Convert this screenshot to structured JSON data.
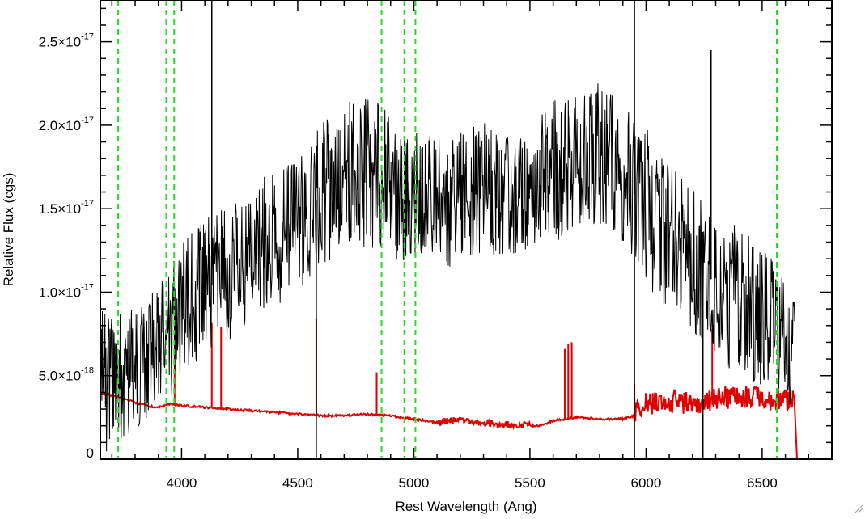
{
  "chart_data": {
    "type": "line",
    "title": "",
    "xlabel": "Rest Wavelength (Ang)",
    "ylabel": "Relative Flux (cgs)",
    "xlim": [
      3650,
      6800
    ],
    "ylim": [
      0,
      2.75e-17
    ],
    "x_ticks": [
      {
        "value": 4000,
        "label": "4000"
      },
      {
        "value": 4500,
        "label": "4500"
      },
      {
        "value": 5000,
        "label": "5000"
      },
      {
        "value": 5500,
        "label": "5500"
      },
      {
        "value": 6000,
        "label": "6000"
      },
      {
        "value": 6500,
        "label": "6500"
      }
    ],
    "y_ticks": [
      {
        "value": 0,
        "mantissa": "0",
        "exponent": ""
      },
      {
        "value": 5e-18,
        "mantissa": "5.0×10",
        "exponent": "-18"
      },
      {
        "value": 1e-17,
        "mantissa": "1.0×10",
        "exponent": "-17"
      },
      {
        "value": 1.5e-17,
        "mantissa": "1.5×10",
        "exponent": "-17"
      },
      {
        "value": 2e-17,
        "mantissa": "2.0×10",
        "exponent": "-17"
      },
      {
        "value": 2.5e-17,
        "mantissa": "2.5×10",
        "exponent": "-17"
      }
    ],
    "grid": false,
    "series": [
      {
        "role": "spectrum",
        "color": "#000000",
        "x": [
          3650,
          3700,
          3750,
          3800,
          3850,
          3900,
          3950,
          4000,
          4050,
          4100,
          4150,
          4200,
          4250,
          4300,
          4350,
          4400,
          4450,
          4500,
          4550,
          4600,
          4650,
          4700,
          4750,
          4800,
          4850,
          4900,
          4950,
          5000,
          5050,
          5100,
          5150,
          5200,
          5250,
          5300,
          5350,
          5400,
          5450,
          5500,
          5550,
          5600,
          5650,
          5700,
          5750,
          5800,
          5850,
          5900,
          5950,
          6000,
          6050,
          6100,
          6150,
          6200,
          6250,
          6300,
          6350,
          6400,
          6450,
          6500,
          6550,
          6600,
          6640
        ],
        "y": [
          4.5e-18,
          4.8e-18,
          5.1e-18,
          5.5e-18,
          6e-18,
          6.8e-18,
          7.5e-18,
          8.8e-18,
          9.6e-18,
          1.02e-17,
          1.06e-17,
          1.1e-17,
          1.15e-17,
          1.2e-17,
          1.27e-17,
          1.33e-17,
          1.38e-17,
          1.42e-17,
          1.5e-17,
          1.58e-17,
          1.62e-17,
          1.68e-17,
          1.72e-17,
          1.72e-17,
          1.7e-17,
          1.65e-17,
          1.6e-17,
          1.62e-17,
          1.65e-17,
          1.6e-17,
          1.55e-17,
          1.55e-17,
          1.6e-17,
          1.63e-17,
          1.6e-17,
          1.55e-17,
          1.58e-17,
          1.65e-17,
          1.7e-17,
          1.75e-17,
          1.72e-17,
          1.78e-17,
          1.82e-17,
          1.85e-17,
          1.8e-17,
          1.72e-17,
          1.6e-17,
          1.52e-17,
          1.42e-17,
          1.35e-17,
          1.28e-17,
          1.2e-17,
          1.12e-17,
          1.05e-17,
          1e-17,
          9.5e-18,
          9e-18,
          8.5e-18,
          8e-18,
          7e-18,
          6.5e-18
        ],
        "spikes": [
          {
            "x": 4130,
            "y": 2.75e-17
          },
          {
            "x": 4580,
            "y": 1e-19
          },
          {
            "x": 5950,
            "y": 2.75e-17
          },
          {
            "x": 5950,
            "y": 1e-19
          },
          {
            "x": 6280,
            "y": 2.45e-17
          },
          {
            "x": 6245,
            "y": 1e-19
          }
        ]
      },
      {
        "role": "error",
        "color": "#e00000",
        "x": [
          3650,
          3700,
          3750,
          3800,
          3850,
          3900,
          3950,
          4000,
          4100,
          4200,
          4300,
          4400,
          4500,
          4550,
          4600,
          4700,
          4800,
          4900,
          5000,
          5100,
          5200,
          5300,
          5400,
          5500,
          5550,
          5600,
          5700,
          5800,
          5900,
          5950,
          6000,
          6100,
          6200,
          6300,
          6400,
          6500,
          6600,
          6640,
          6650,
          6700,
          6800
        ],
        "y": [
          4e-18,
          3.8e-18,
          3.6e-18,
          3.4e-18,
          3.2e-18,
          3.1e-18,
          3.3e-18,
          3.2e-18,
          3.1e-18,
          3e-18,
          2.9e-18,
          2.8e-18,
          2.7e-18,
          2.7e-18,
          2.6e-18,
          2.6e-18,
          2.7e-18,
          2.6e-18,
          2.4e-18,
          2.2e-18,
          2.4e-18,
          2.2e-18,
          2.1e-18,
          2e-18,
          2e-18,
          2.3e-18,
          2.5e-18,
          2.4e-18,
          2.4e-18,
          2.6e-18,
          3e-18,
          3.2e-18,
          3e-18,
          3.3e-18,
          3.5e-18,
          3.4e-18,
          3.2e-18,
          3.1e-18,
          0,
          0,
          0
        ],
        "spikes": [
          {
            "x": 3970,
            "y": 8.8e-18
          },
          {
            "x": 4130,
            "y": 8.2e-18
          },
          {
            "x": 4170,
            "y": 7.9e-18
          },
          {
            "x": 4580,
            "y": 8.4e-18
          },
          {
            "x": 4840,
            "y": 5.2e-18
          },
          {
            "x": 5650,
            "y": 6.6e-18
          },
          {
            "x": 5665,
            "y": 6.9e-18
          },
          {
            "x": 5680,
            "y": 7e-18
          },
          {
            "x": 5950,
            "y": 4.5e-18
          },
          {
            "x": 6285,
            "y": 7.8e-18
          }
        ]
      }
    ],
    "annotations": [
      {
        "type": "vline",
        "x": 3727,
        "style": "dashed",
        "color": "#22dd22"
      },
      {
        "type": "vline",
        "x": 3934,
        "style": "dashed",
        "color": "#22dd22"
      },
      {
        "type": "vline",
        "x": 3968,
        "style": "dashed",
        "color": "#22dd22"
      },
      {
        "type": "vline",
        "x": 4861,
        "style": "dashed",
        "color": "#22dd22"
      },
      {
        "type": "vline",
        "x": 4959,
        "style": "dashed",
        "color": "#22dd22"
      },
      {
        "type": "vline",
        "x": 5007,
        "style": "dashed",
        "color": "#22dd22"
      },
      {
        "type": "vline",
        "x": 6563,
        "style": "dashed",
        "color": "#22dd22"
      }
    ]
  }
}
